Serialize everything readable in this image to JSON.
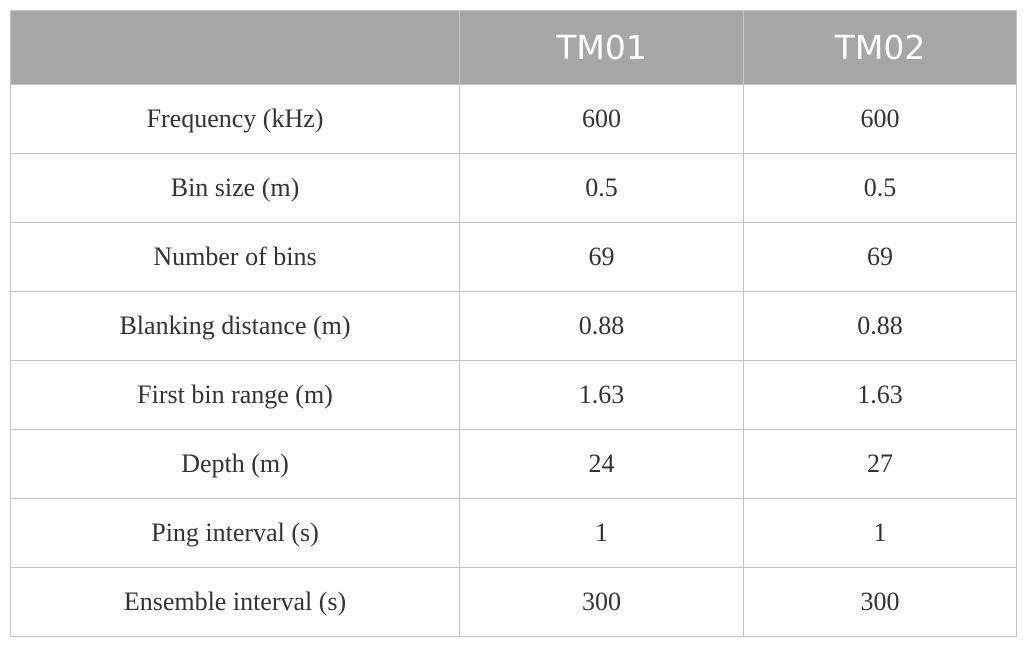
{
  "table": {
    "columns": [
      "TM01",
      "TM02"
    ],
    "rows": [
      [
        "Frequency (kHz)",
        600,
        600
      ],
      [
        "Bin size (m)",
        0.5,
        0.5
      ],
      [
        "Number of bins",
        69,
        69
      ],
      [
        "Blanking distance (m)",
        0.88,
        0.88
      ],
      [
        "First bin range (m)",
        1.63,
        1.63
      ],
      [
        "Depth (m)",
        24,
        27
      ],
      [
        "Ping interval (s)",
        1,
        1
      ],
      [
        "Ensemble interval (s)",
        300,
        300
      ]
    ]
  }
}
